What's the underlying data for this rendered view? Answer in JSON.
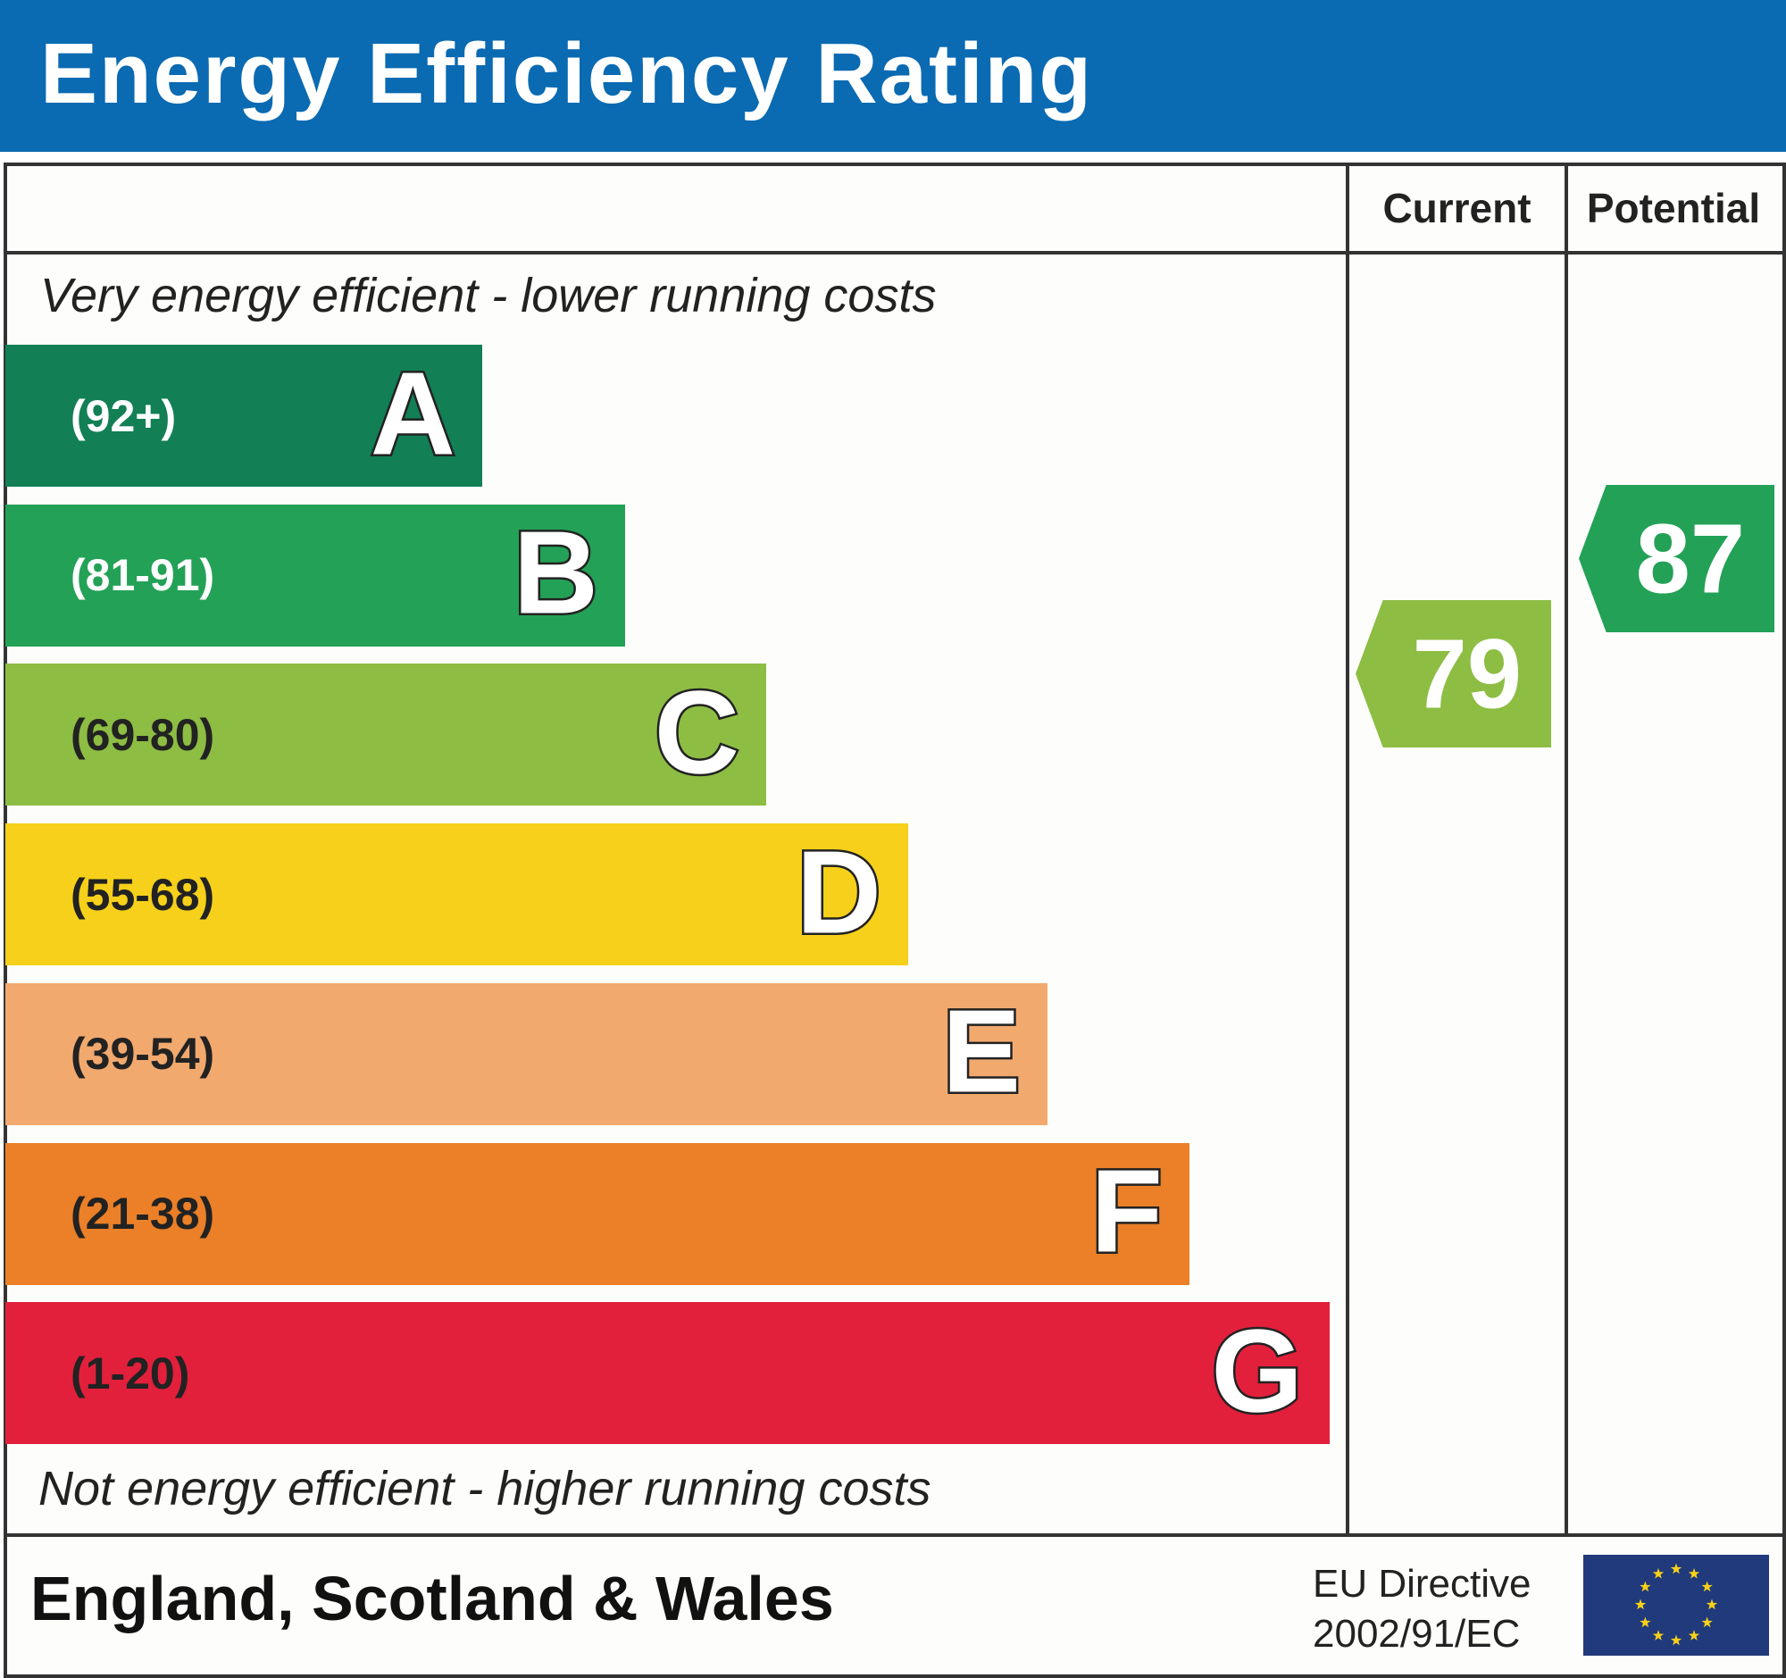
{
  "header": {
    "title": "Energy Efficiency Rating"
  },
  "columns": {
    "current": "Current",
    "potential": "Potential"
  },
  "notes": {
    "top": "Very energy efficient - lower running costs",
    "bottom": "Not energy efficient - higher running costs"
  },
  "chart_data": {
    "type": "bar",
    "title": "Energy Efficiency Rating",
    "bands": [
      {
        "letter": "A",
        "range": "(92+)",
        "color": "#127f55",
        "text_color": "#ffffff"
      },
      {
        "letter": "B",
        "range": "(81-91)",
        "color": "#23a156",
        "text_color": "#ffffff"
      },
      {
        "letter": "C",
        "range": "(69-80)",
        "color": "#8dbd43",
        "text_color": "#222222"
      },
      {
        "letter": "D",
        "range": "(55-68)",
        "color": "#f6d01a",
        "text_color": "#222222"
      },
      {
        "letter": "E",
        "range": "(39-54)",
        "color": "#f2a96e",
        "text_color": "#222222"
      },
      {
        "letter": "F",
        "range": "(21-38)",
        "color": "#eb8028",
        "text_color": "#222222"
      },
      {
        "letter": "G",
        "range": "(1-20)",
        "color": "#e2203c",
        "text_color": "#222222"
      }
    ],
    "current": {
      "value": "79",
      "band": "C",
      "color": "#8dbd43"
    },
    "potential": {
      "value": "87",
      "band": "B",
      "color": "#23a156"
    }
  },
  "footer": {
    "region": "England, Scotland & Wales",
    "directive_line1": "EU Directive",
    "directive_line2": "2002/91/EC",
    "flag_icon": "eu-flag-icon"
  }
}
